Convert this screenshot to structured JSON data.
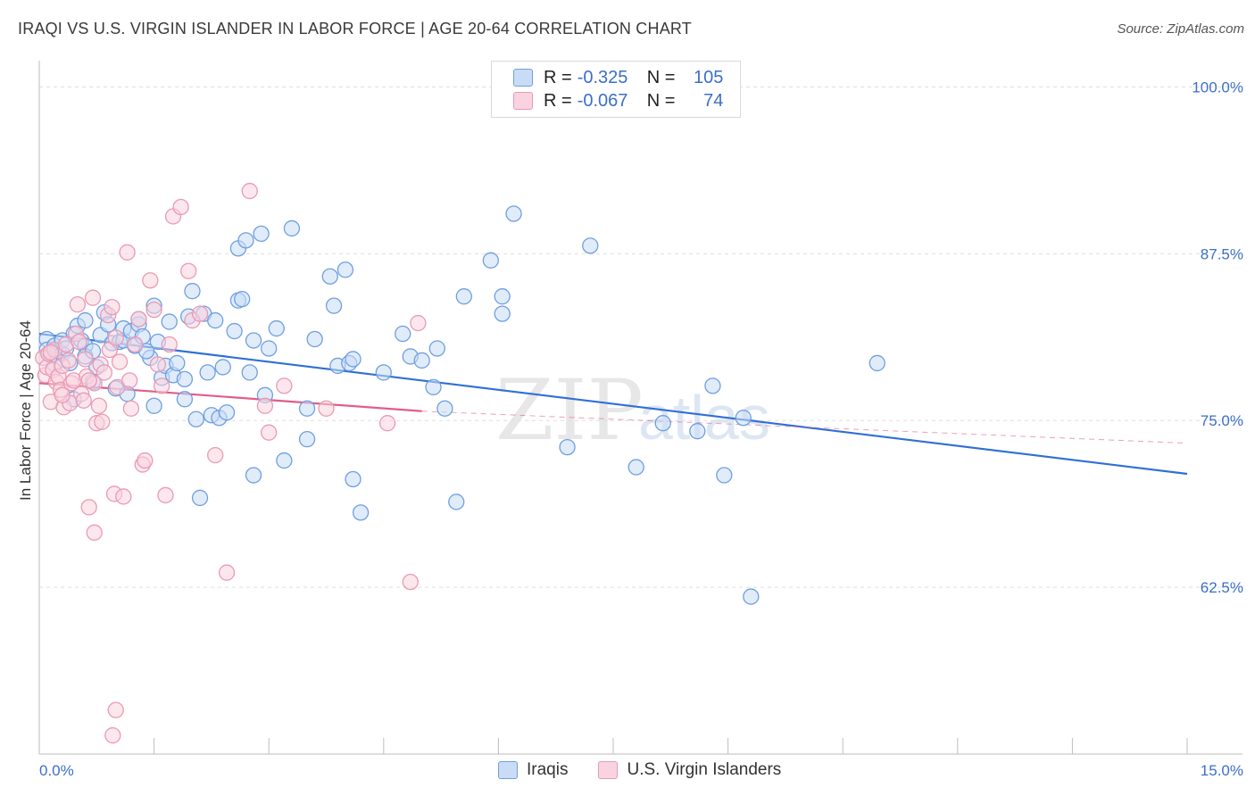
{
  "title": "IRAQI VS U.S. VIRGIN ISLANDER IN LABOR FORCE | AGE 20-64 CORRELATION CHART",
  "source": "Source: ZipAtlas.com",
  "watermark": {
    "zip": "ZIP",
    "atlas": "atlas"
  },
  "legend": {
    "rows": [
      {
        "r_label": "R =",
        "r_value": "-0.325",
        "n_label": "N =",
        "n_value": "105",
        "color": "#6f9fe0",
        "fill": "#c9dcf6"
      },
      {
        "r_label": "R =",
        "r_value": "-0.067",
        "n_label": "N =",
        "n_value": "74",
        "color": "#e99ab5",
        "fill": "#f9d3df"
      }
    ]
  },
  "bottom_legend": [
    {
      "label": "Iraqis",
      "color": "#6f9fe0",
      "fill": "#c9dcf6"
    },
    {
      "label": "U.S. Virgin Islanders",
      "color": "#e99ab5",
      "fill": "#f9d3df"
    }
  ],
  "chart_data": {
    "type": "scatter",
    "title": "IRAQI VS U.S. VIRGIN ISLANDER IN LABOR FORCE | AGE 20-64 CORRELATION CHART",
    "xlabel": "",
    "ylabel": "In Labor Force | Age 20-64",
    "xlim": [
      0.0,
      15.0
    ],
    "ylim": [
      50.0,
      101.3
    ],
    "x_tick_labels": [
      "0.0%",
      "15.0%"
    ],
    "y_ticks": [
      100.0,
      87.5,
      75.0,
      62.5
    ],
    "y_tick_labels": [
      "100.0%",
      "87.5%",
      "75.0%",
      "62.5%"
    ],
    "grid": true,
    "series": [
      {
        "name": "Iraqis",
        "color": "#6f9fe0",
        "fill": "#c9dcf6",
        "trend": {
          "x": [
            0.0,
            15.0
          ],
          "y": [
            81.5,
            71.0
          ],
          "color": "#2f6fd6"
        },
        "points": [
          [
            0.1,
            81.1
          ],
          [
            0.1,
            80.3
          ],
          [
            0.15,
            79.9
          ],
          [
            0.2,
            80.6
          ],
          [
            0.2,
            79.2
          ],
          [
            0.25,
            80.2
          ],
          [
            0.3,
            80.0
          ],
          [
            0.3,
            81.0
          ],
          [
            0.35,
            80.4
          ],
          [
            0.4,
            79.3
          ],
          [
            0.45,
            81.5
          ],
          [
            0.5,
            82.1
          ],
          [
            0.55,
            81.0
          ],
          [
            0.6,
            80.6
          ],
          [
            0.6,
            79.8
          ],
          [
            0.6,
            82.5
          ],
          [
            0.7,
            80.2
          ],
          [
            0.75,
            79.0
          ],
          [
            0.8,
            81.4
          ],
          [
            0.85,
            83.1
          ],
          [
            0.9,
            82.2
          ],
          [
            0.95,
            80.8
          ],
          [
            1.0,
            77.4
          ],
          [
            1.05,
            80.9
          ],
          [
            1.1,
            81.0
          ],
          [
            1.1,
            81.9
          ],
          [
            1.15,
            77.0
          ],
          [
            1.2,
            81.7
          ],
          [
            1.25,
            80.6
          ],
          [
            1.3,
            82.2
          ],
          [
            1.3,
            82.6
          ],
          [
            1.35,
            81.3
          ],
          [
            1.45,
            79.7
          ],
          [
            1.5,
            76.1
          ],
          [
            1.5,
            83.6
          ],
          [
            1.55,
            80.9
          ],
          [
            1.6,
            78.2
          ],
          [
            1.65,
            79.1
          ],
          [
            1.7,
            82.4
          ],
          [
            1.75,
            78.4
          ],
          [
            1.8,
            79.3
          ],
          [
            1.9,
            76.6
          ],
          [
            1.9,
            78.1
          ],
          [
            1.95,
            82.8
          ],
          [
            2.0,
            84.7
          ],
          [
            2.05,
            75.1
          ],
          [
            2.1,
            69.2
          ],
          [
            2.15,
            83.0
          ],
          [
            2.2,
            78.6
          ],
          [
            2.25,
            75.4
          ],
          [
            2.3,
            82.5
          ],
          [
            2.35,
            75.2
          ],
          [
            2.4,
            79.0
          ],
          [
            2.45,
            75.6
          ],
          [
            2.55,
            81.7
          ],
          [
            2.6,
            84.0
          ],
          [
            2.6,
            87.9
          ],
          [
            2.65,
            84.1
          ],
          [
            2.7,
            88.5
          ],
          [
            2.75,
            78.6
          ],
          [
            2.8,
            70.9
          ],
          [
            2.8,
            81.0
          ],
          [
            2.9,
            89.0
          ],
          [
            2.95,
            76.9
          ],
          [
            3.0,
            80.4
          ],
          [
            3.1,
            81.9
          ],
          [
            3.2,
            72.0
          ],
          [
            3.3,
            89.4
          ],
          [
            3.5,
            75.9
          ],
          [
            3.5,
            73.6
          ],
          [
            3.6,
            81.1
          ],
          [
            3.8,
            85.8
          ],
          [
            3.85,
            83.6
          ],
          [
            3.9,
            79.1
          ],
          [
            4.0,
            86.3
          ],
          [
            4.05,
            79.3
          ],
          [
            4.1,
            79.6
          ],
          [
            4.1,
            70.6
          ],
          [
            4.2,
            68.1
          ],
          [
            4.5,
            78.6
          ],
          [
            4.75,
            81.5
          ],
          [
            4.85,
            79.8
          ],
          [
            5.0,
            79.5
          ],
          [
            5.15,
            77.5
          ],
          [
            5.2,
            80.4
          ],
          [
            5.3,
            75.9
          ],
          [
            5.45,
            68.9
          ],
          [
            5.55,
            84.3
          ],
          [
            5.9,
            87.0
          ],
          [
            6.05,
            84.3
          ],
          [
            6.05,
            83.0
          ],
          [
            6.2,
            90.5
          ],
          [
            6.9,
            73.0
          ],
          [
            7.2,
            88.1
          ],
          [
            7.8,
            71.5
          ],
          [
            8.15,
            74.8
          ],
          [
            8.6,
            74.2
          ],
          [
            8.8,
            77.6
          ],
          [
            8.95,
            70.9
          ],
          [
            9.2,
            75.2
          ],
          [
            9.3,
            61.8
          ],
          [
            10.95,
            79.3
          ],
          [
            0.45,
            76.6
          ],
          [
            0.7,
            77.9
          ],
          [
            1.4,
            80.2
          ]
        ]
      },
      {
        "name": "U.S. Virgin Islanders",
        "color": "#e99ab5",
        "fill": "#f9d3df",
        "trend": {
          "x": [
            0.0,
            5.0
          ],
          "y": [
            77.8,
            75.7
          ],
          "color": "#e05d8c",
          "dashed_to": [
            15.0,
            73.3
          ]
        },
        "points": [
          [
            0.05,
            79.7
          ],
          [
            0.08,
            78.4
          ],
          [
            0.1,
            79.0
          ],
          [
            0.12,
            80.0
          ],
          [
            0.15,
            76.4
          ],
          [
            0.18,
            78.8
          ],
          [
            0.2,
            80.3
          ],
          [
            0.22,
            77.9
          ],
          [
            0.25,
            78.3
          ],
          [
            0.28,
            77.3
          ],
          [
            0.3,
            79.1
          ],
          [
            0.32,
            76.0
          ],
          [
            0.35,
            80.7
          ],
          [
            0.38,
            79.5
          ],
          [
            0.4,
            76.3
          ],
          [
            0.42,
            77.8
          ],
          [
            0.45,
            78.0
          ],
          [
            0.48,
            81.5
          ],
          [
            0.5,
            83.7
          ],
          [
            0.52,
            80.9
          ],
          [
            0.55,
            77.0
          ],
          [
            0.58,
            76.5
          ],
          [
            0.6,
            79.6
          ],
          [
            0.62,
            78.3
          ],
          [
            0.65,
            68.5
          ],
          [
            0.7,
            84.2
          ],
          [
            0.72,
            77.8
          ],
          [
            0.75,
            74.8
          ],
          [
            0.78,
            76.1
          ],
          [
            0.8,
            79.2
          ],
          [
            0.82,
            74.9
          ],
          [
            0.85,
            78.6
          ],
          [
            0.9,
            82.9
          ],
          [
            0.92,
            80.3
          ],
          [
            0.95,
            83.5
          ],
          [
            0.98,
            69.5
          ],
          [
            1.0,
            81.2
          ],
          [
            1.02,
            77.5
          ],
          [
            1.05,
            79.4
          ],
          [
            1.1,
            69.3
          ],
          [
            1.15,
            87.6
          ],
          [
            1.18,
            78.0
          ],
          [
            1.2,
            75.9
          ],
          [
            1.25,
            80.7
          ],
          [
            1.3,
            82.6
          ],
          [
            1.35,
            71.7
          ],
          [
            1.38,
            72.0
          ],
          [
            1.45,
            85.5
          ],
          [
            1.5,
            83.3
          ],
          [
            1.55,
            79.2
          ],
          [
            1.6,
            77.6
          ],
          [
            1.65,
            69.4
          ],
          [
            1.75,
            90.3
          ],
          [
            1.85,
            91.0
          ],
          [
            1.95,
            86.2
          ],
          [
            2.0,
            82.5
          ],
          [
            2.1,
            83.0
          ],
          [
            2.3,
            72.4
          ],
          [
            2.45,
            63.6
          ],
          [
            2.75,
            92.2
          ],
          [
            2.95,
            76.1
          ],
          [
            3.0,
            74.1
          ],
          [
            3.2,
            77.6
          ],
          [
            3.75,
            75.9
          ],
          [
            4.55,
            74.8
          ],
          [
            4.85,
            62.9
          ],
          [
            4.95,
            82.3
          ],
          [
            0.72,
            66.6
          ],
          [
            1.0,
            53.3
          ],
          [
            0.96,
            51.4
          ],
          [
            0.3,
            76.9
          ],
          [
            0.65,
            78.0
          ],
          [
            1.7,
            80.7
          ],
          [
            0.15,
            80.1
          ]
        ]
      }
    ]
  }
}
